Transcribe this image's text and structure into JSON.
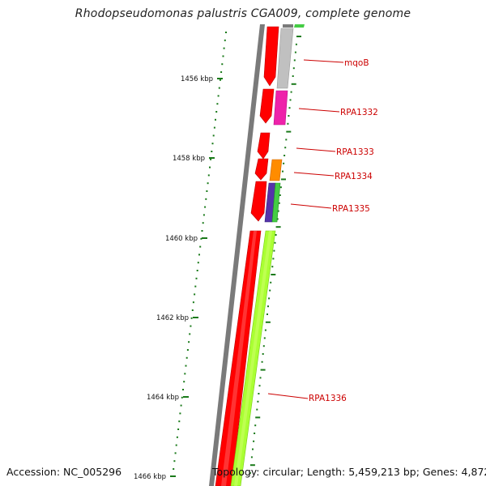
{
  "title": "Rhodopseudomonas palustris CGA009, complete genome",
  "footer": {
    "accession": "Accession: NC_005296",
    "summary": "Topology: circular; Length: 5,459,213 bp; Genes: 4,872"
  },
  "scale_labels": [
    "1456 kbp",
    "1458 kbp",
    "1460 kbp",
    "1462 kbp",
    "1464 kbp",
    "1466 kbp"
  ],
  "genes": [
    {
      "name": "mqoB",
      "color": "#c0c0c0",
      "strand": "forward"
    },
    {
      "name": "RPA1332",
      "color": "#ee22aa",
      "strand": "forward"
    },
    {
      "name": "RPA1333",
      "color": "#ff0000",
      "strand": "reverse"
    },
    {
      "name": "RPA1334",
      "color": "#ff8c00",
      "strand": "forward"
    },
    {
      "name": "RPA1335",
      "color": "#5533aa",
      "strand": "forward"
    },
    {
      "name": "RPA1336",
      "color": "#aaff33",
      "strand": "forward"
    }
  ],
  "colors": {
    "backbone": "#7a7a7a",
    "reverse_strand": "#ff0000",
    "tick": "#1a7a1a",
    "label": "#cc0000",
    "green_strip": "#44cc44"
  }
}
